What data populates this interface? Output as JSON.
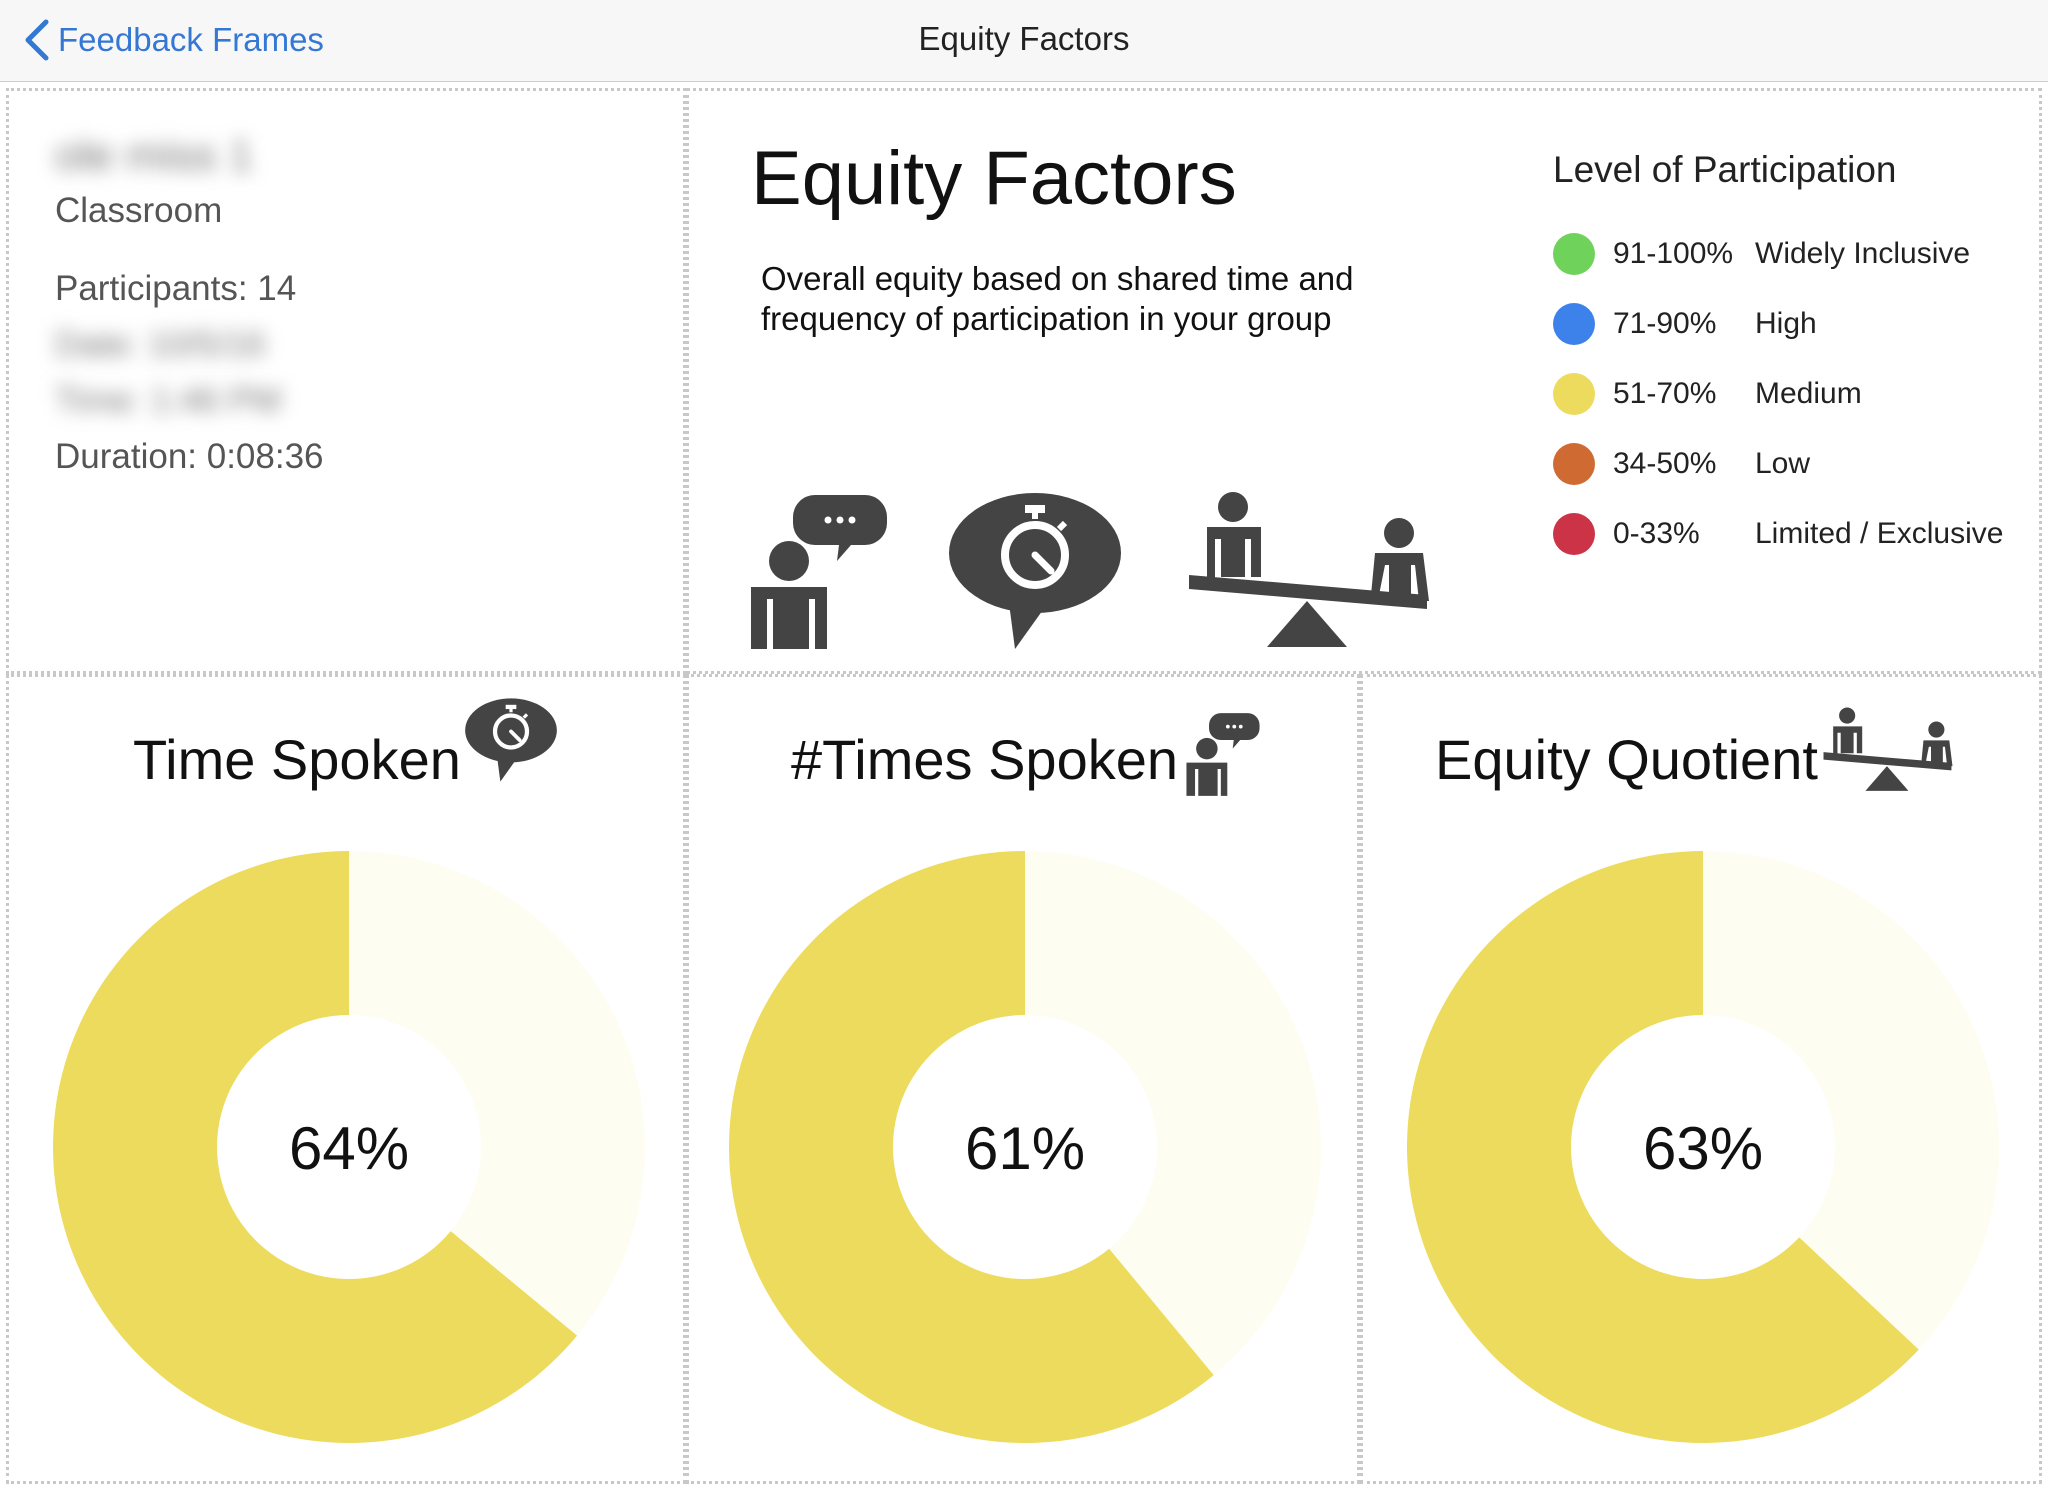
{
  "navbar": {
    "back_label": "Feedback Frames",
    "title": "Equity Factors"
  },
  "session": {
    "name": "ole miss 1",
    "type": "Classroom",
    "participants": "Participants: 14",
    "date": "Date: 10/5/16",
    "time": "Time: 1:46 PM",
    "duration": "Duration: 0:08:36"
  },
  "header": {
    "title": "Equity Factors",
    "description": "Overall equity based on shared time and frequency of participation in your group",
    "icons": [
      "person-speaking-icon",
      "stopwatch-bubble-icon",
      "seesaw-icon"
    ]
  },
  "legend": {
    "title": "Level of Participation",
    "items": [
      {
        "range": "91-100%",
        "label": "Widely Inclusive",
        "color": "#6fd35b"
      },
      {
        "range": "71-90%",
        "label": "High",
        "color": "#3d82ea"
      },
      {
        "range": "51-70%",
        "label": "Medium",
        "color": "#ecdb5d"
      },
      {
        "range": "34-50%",
        "label": "Low",
        "color": "#cf6a33"
      },
      {
        "range": "0-33%",
        "label": "Limited / Exclusive",
        "color": "#cc3347"
      }
    ]
  },
  "colors": {
    "accent": "#3478d4",
    "donut_fill": "#ecdb5d",
    "donut_track": "#fdfdf2"
  },
  "chart_data": [
    {
      "type": "pie",
      "title": "Time Spoken",
      "values": [
        64,
        36
      ],
      "center_label": "64%",
      "icon": "stopwatch-bubble-icon"
    },
    {
      "type": "pie",
      "title": "#Times Spoken",
      "values": [
        61,
        39
      ],
      "center_label": "61%",
      "icon": "person-speaking-icon"
    },
    {
      "type": "pie",
      "title": "Equity Quotient",
      "values": [
        63,
        37
      ],
      "center_label": "63%",
      "icon": "seesaw-icon"
    }
  ]
}
